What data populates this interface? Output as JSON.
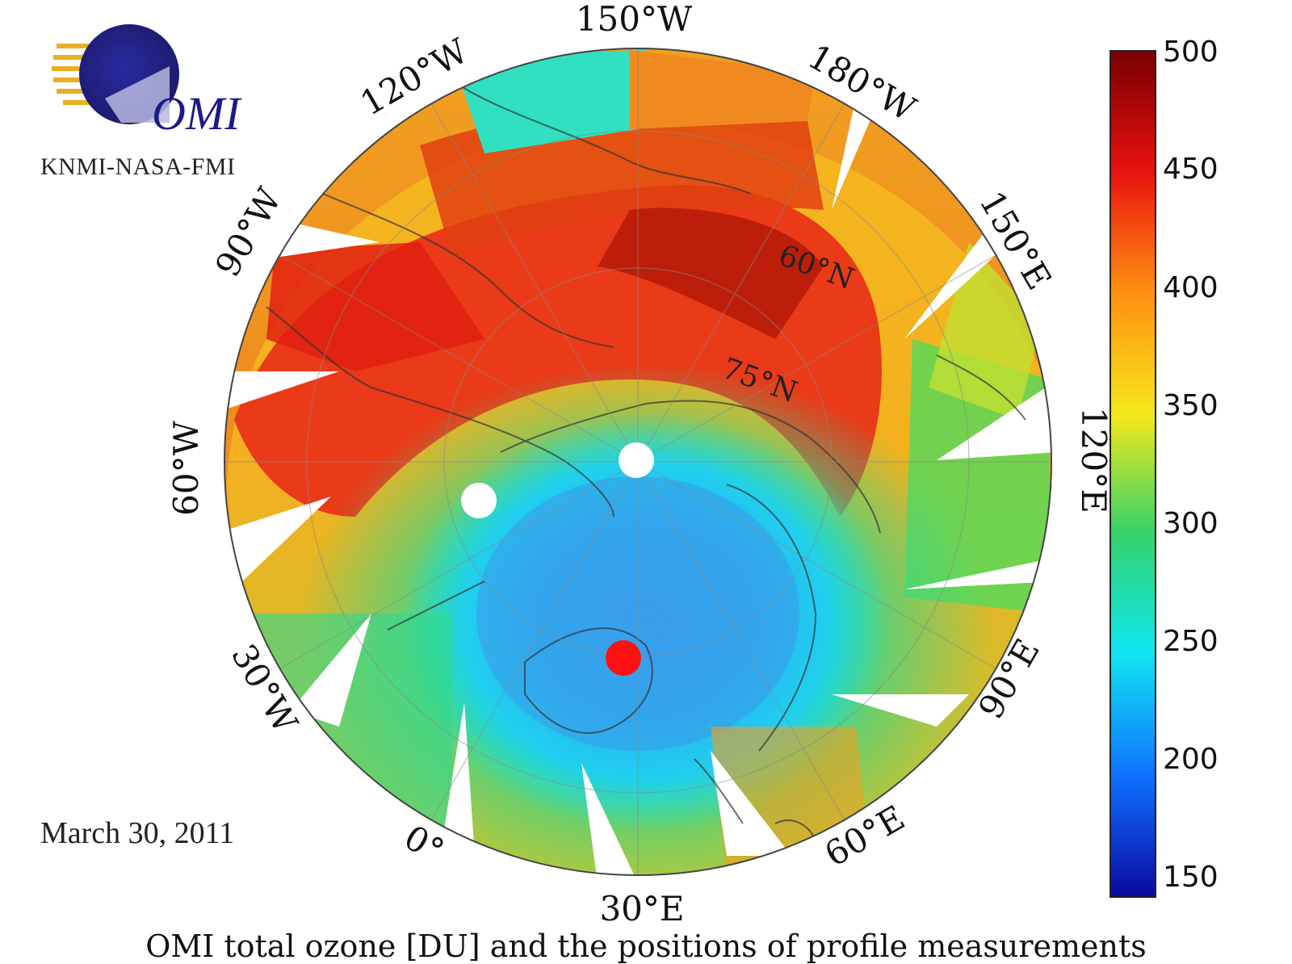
{
  "logo": {
    "text": "OMI",
    "org": "KNMI-NASA-FMI"
  },
  "date": "March 30, 2011",
  "caption": "OMI total ozone [DU] and the positions of profile measurements",
  "map": {
    "projection": "north-polar-stereographic",
    "longitude_labels": {
      "lon_150W": "150°W",
      "lon_180W": "180°W",
      "lon_150E": "150°E",
      "lon_120E": "120°E",
      "lon_90E": "90°E",
      "lon_60E": "60°E",
      "lon_30E": "30°E",
      "lon_0": "0°",
      "lon_30W": "30°W",
      "lon_60W": "60°W",
      "lon_90W": "90°W",
      "lon_120W": "120°W"
    },
    "latitude_labels": {
      "lat_60N": "60°N",
      "lat_75N": "75°N"
    },
    "profile_measurements": [
      {
        "name": "red-site",
        "color": "#ff1010"
      },
      {
        "name": "white-site-1",
        "color": "#ffffff"
      },
      {
        "name": "white-site-2",
        "color": "#ffffff"
      }
    ]
  },
  "colorbar": {
    "unit": "DU",
    "ticks": [
      "500",
      "450",
      "400",
      "350",
      "300",
      "250",
      "200",
      "150"
    ],
    "colors": [
      "#7a0000",
      "#e81010",
      "#ff8c10",
      "#f5e81a",
      "#34d26a",
      "#10e6f0",
      "#1070ff",
      "#0a0aa0"
    ]
  }
}
